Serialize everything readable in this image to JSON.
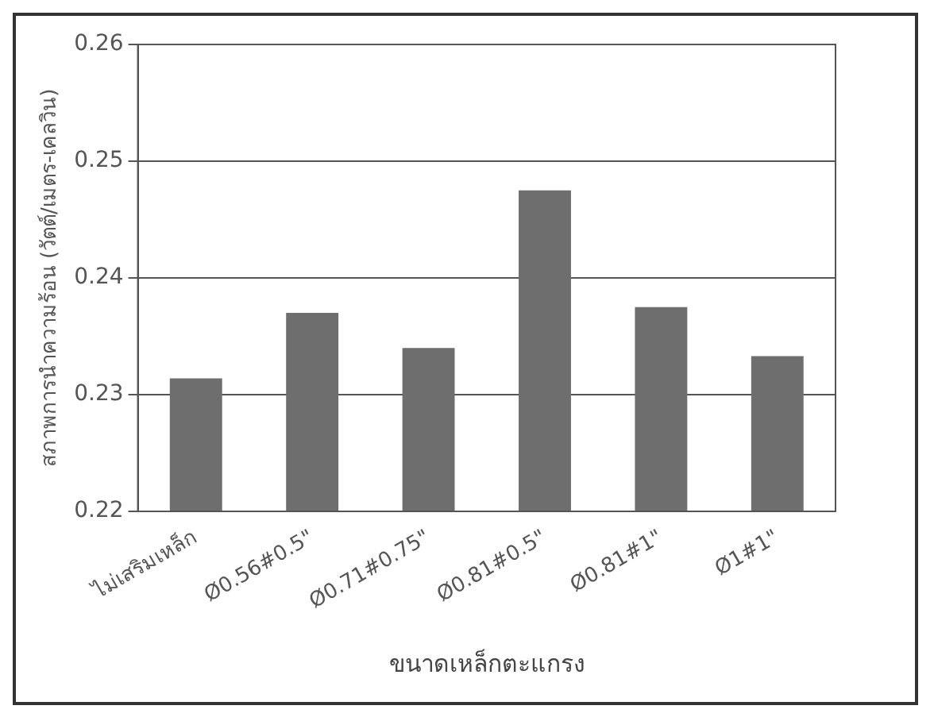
{
  "chart_data": {
    "type": "bar",
    "xlabel": "ขนาดเหล็กตะแกรง",
    "ylabel": "สภาพการนำความร้อน (วัตต์/เมตร-เคลวิน)",
    "categories": [
      "ไม่เสริมเหล็ก",
      "Ø0.56#0.5\"",
      "Ø0.71#0.75\"",
      "Ø0.81#0.5\"",
      "Ø0.81#1\"",
      "Ø1#1\""
    ],
    "values": [
      0.2314,
      0.237,
      0.234,
      0.2475,
      0.2375,
      0.2333
    ],
    "color": "#6e6e6e",
    "ylim": [
      0.22,
      0.26
    ],
    "yticks": [
      0.22,
      0.23,
      0.24,
      0.25,
      0.26
    ],
    "grid": "y"
  }
}
